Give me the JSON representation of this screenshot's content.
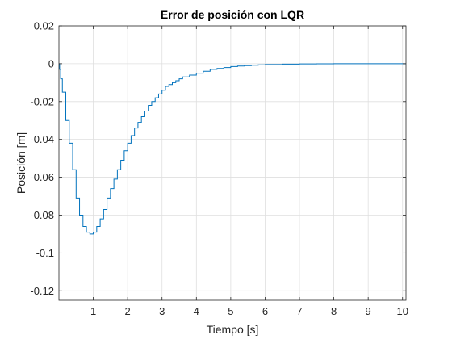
{
  "chart_data": {
    "type": "line",
    "title": "Error de posición con LQR",
    "xlabel": "Tiempo [s]",
    "ylabel": "Posición [m]",
    "xlim": [
      0,
      10.1
    ],
    "ylim": [
      -0.125,
      0.02
    ],
    "xticks": [
      1,
      2,
      3,
      4,
      5,
      6,
      7,
      8,
      9,
      10
    ],
    "xtick_labels": [
      "1",
      "2",
      "3",
      "4",
      "5",
      "6",
      "7",
      "8",
      "9",
      "10"
    ],
    "yticks": [
      0.02,
      0,
      -0.02,
      -0.04,
      -0.06,
      -0.08,
      -0.1,
      -0.12
    ],
    "ytick_labels": [
      "0.02",
      "0",
      "-0.02",
      "-0.04",
      "-0.06",
      "-0.08",
      "-0.1",
      "-0.12"
    ],
    "grid": true,
    "step_style": "stairs",
    "series": [
      {
        "color": "#0072bd",
        "x": [
          0,
          0.02,
          0.05,
          0.1,
          0.2,
          0.3,
          0.4,
          0.5,
          0.6,
          0.7,
          0.8,
          0.9,
          1.0,
          1.1,
          1.2,
          1.3,
          1.4,
          1.5,
          1.6,
          1.7,
          1.8,
          1.9,
          2.0,
          2.1,
          2.2,
          2.3,
          2.4,
          2.5,
          2.6,
          2.7,
          2.8,
          2.9,
          3.0,
          3.1,
          3.2,
          3.3,
          3.4,
          3.5,
          3.6,
          3.8,
          4.0,
          4.2,
          4.4,
          4.6,
          4.8,
          5.0,
          5.2,
          5.4,
          5.6,
          5.8,
          6.0,
          6.5,
          7.0,
          7.5,
          8.0,
          9.0,
          10.1
        ],
        "y": [
          0,
          -0.003,
          -0.008,
          -0.015,
          -0.03,
          -0.042,
          -0.056,
          -0.071,
          -0.08,
          -0.086,
          -0.089,
          -0.09,
          -0.089,
          -0.086,
          -0.082,
          -0.077,
          -0.071,
          -0.066,
          -0.061,
          -0.056,
          -0.051,
          -0.046,
          -0.042,
          -0.038,
          -0.034,
          -0.031,
          -0.028,
          -0.025,
          -0.022,
          -0.02,
          -0.018,
          -0.016,
          -0.014,
          -0.012,
          -0.011,
          -0.01,
          -0.009,
          -0.008,
          -0.007,
          -0.006,
          -0.005,
          -0.004,
          -0.003,
          -0.0025,
          -0.002,
          -0.0015,
          -0.0012,
          -0.001,
          -0.0008,
          -0.0006,
          -0.0004,
          -0.0002,
          -0.0001,
          -5e-05,
          0,
          0,
          0
        ]
      }
    ]
  }
}
